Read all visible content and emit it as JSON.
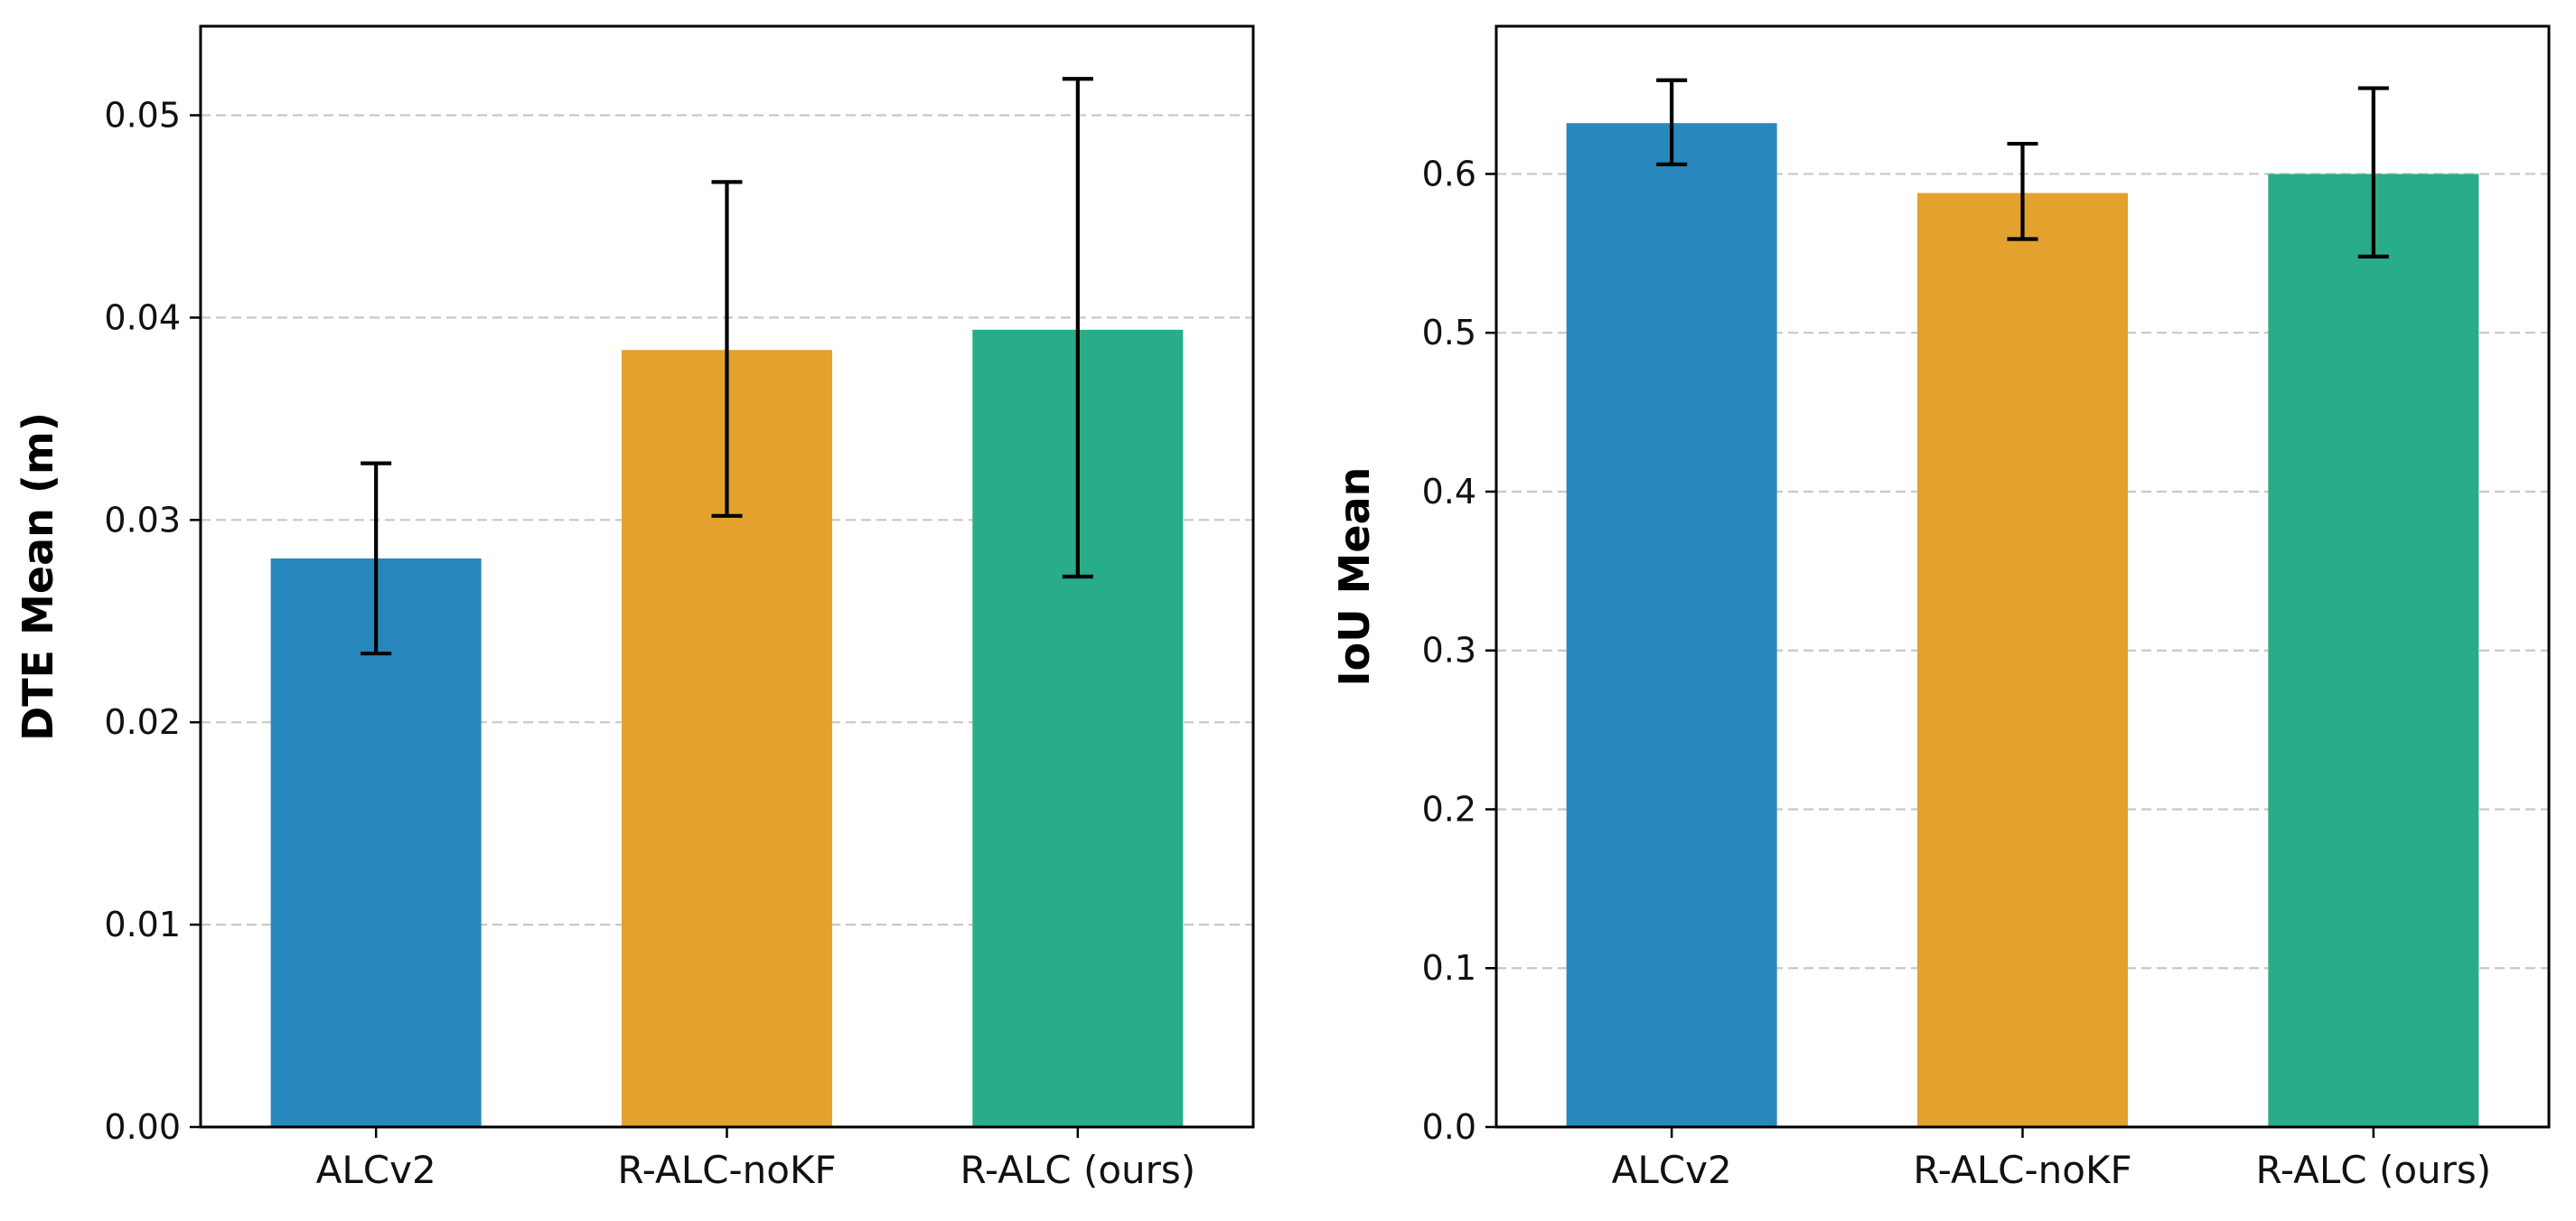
{
  "chart_data": [
    {
      "type": "bar",
      "categories": [
        "ALCv2",
        "R-ALC-noKF",
        "R-ALC (ours)"
      ],
      "values": [
        0.0281,
        0.0384,
        0.0394
      ],
      "error_low": [
        0.0234,
        0.0302,
        0.0272
      ],
      "error_high": [
        0.0328,
        0.0467,
        0.0518
      ],
      "colors": [
        "#2888BD",
        "#E3A12D",
        "#29AC88"
      ],
      "ylabel": "DTE Mean (m)",
      "ylim": [
        0,
        0.0544
      ],
      "yticks": [
        0,
        0.01,
        0.02,
        0.03,
        0.04,
        0.05
      ],
      "ytick_labels": [
        "0.00",
        "0.01",
        "0.02",
        "0.03",
        "0.04",
        "0.05"
      ],
      "grid": "y-dashed"
    },
    {
      "type": "bar",
      "categories": [
        "ALCv2",
        "R-ALC-noKF",
        "R-ALC (ours)"
      ],
      "values": [
        0.632,
        0.588,
        0.6
      ],
      "error_low": [
        0.606,
        0.559,
        0.548
      ],
      "error_high": [
        0.659,
        0.619,
        0.654
      ],
      "colors": [
        "#2888BD",
        "#E3A12D",
        "#29AC88"
      ],
      "ylabel": "IoU Mean",
      "ylim": [
        0,
        0.693
      ],
      "yticks": [
        0,
        0.1,
        0.2,
        0.3,
        0.4,
        0.5,
        0.6
      ],
      "ytick_labels": [
        "0.0",
        "0.1",
        "0.2",
        "0.3",
        "0.4",
        "0.5",
        "0.6"
      ],
      "grid": "y-dashed"
    }
  ]
}
